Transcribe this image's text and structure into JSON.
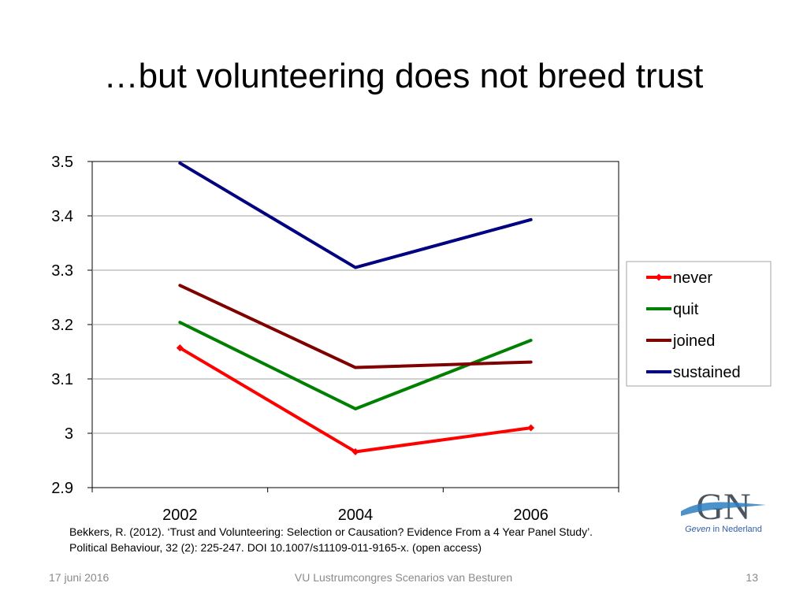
{
  "slide": {
    "title": "…but volunteering does not breed trust",
    "citation_line1": "Bekkers, R. (2012). ‘Trust and Volunteering: Selection or Causation? Evidence From a 4 Year Panel Study’.",
    "citation_line2": "Political Behaviour, 32 (2): 225-247. DOI 10.1007/s11109-011-9165-x. (open access)",
    "footer_date": "17 juni 2016",
    "footer_event": "VU Lustrumcongres Scenarios van Besturen",
    "page_number": "13",
    "logo": {
      "letters": "GN",
      "caption_italic": "Geven",
      "caption_rest": " in Nederland",
      "colors": {
        "letters": "#4a5560",
        "swoosh": "#2f7fc1",
        "caption": "#2f5ea8"
      }
    }
  },
  "chart_data": {
    "type": "line",
    "categories": [
      "2002",
      "2004",
      "2006"
    ],
    "y_ticks": [
      "2.9",
      "3",
      "3.1",
      "3.2",
      "3.3",
      "3.4",
      "3.5"
    ],
    "ylim": [
      2.9,
      3.5
    ],
    "grid": true,
    "legend_position": "right",
    "series": [
      {
        "name": "never",
        "values": [
          3.157,
          2.966,
          3.01
        ],
        "color": "#ff0000",
        "markers": true
      },
      {
        "name": "quit",
        "values": [
          3.204,
          3.045,
          3.171
        ],
        "color": "#008000",
        "markers": false
      },
      {
        "name": "joined",
        "values": [
          3.272,
          3.121,
          3.131
        ],
        "color": "#800000",
        "markers": false
      },
      {
        "name": "sustained",
        "values": [
          3.497,
          3.305,
          3.393
        ],
        "color": "#000080",
        "markers": false
      }
    ]
  }
}
